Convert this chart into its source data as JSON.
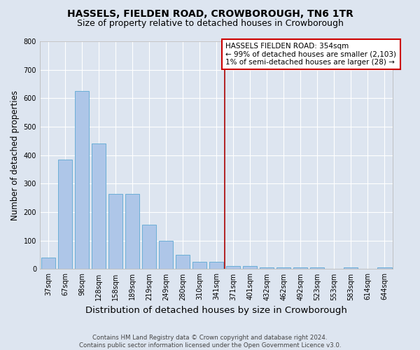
{
  "title": "HASSELS, FIELDEN ROAD, CROWBOROUGH, TN6 1TR",
  "subtitle": "Size of property relative to detached houses in Crowborough",
  "xlabel": "Distribution of detached houses by size in Crowborough",
  "ylabel": "Number of detached properties",
  "footer": "Contains HM Land Registry data © Crown copyright and database right 2024.\nContains public sector information licensed under the Open Government Licence v3.0.",
  "bin_labels": [
    "37sqm",
    "67sqm",
    "98sqm",
    "128sqm",
    "158sqm",
    "189sqm",
    "219sqm",
    "249sqm",
    "280sqm",
    "310sqm",
    "341sqm",
    "371sqm",
    "401sqm",
    "432sqm",
    "462sqm",
    "492sqm",
    "523sqm",
    "553sqm",
    "583sqm",
    "614sqm",
    "644sqm"
  ],
  "bar_heights": [
    40,
    385,
    625,
    440,
    265,
    265,
    155,
    100,
    50,
    25,
    25,
    12,
    12,
    5,
    5,
    5,
    5,
    0,
    5,
    0,
    5
  ],
  "bar_color": "#aec6e8",
  "bar_edge_color": "#6baed6",
  "property_line_bin": 10,
  "property_line_color": "#aa0000",
  "annotation_text": "HASSELS FIELDEN ROAD: 354sqm\n← 99% of detached houses are smaller (2,103)\n1% of semi-detached houses are larger (28) →",
  "annotation_box_color": "#cc0000",
  "annotation_text_color": "#000000",
  "ylim": [
    0,
    800
  ],
  "yticks": [
    0,
    100,
    200,
    300,
    400,
    500,
    600,
    700,
    800
  ],
  "background_color": "#dde5f0",
  "plot_background_color": "#dde5f0",
  "grid_color": "#ffffff",
  "title_fontsize": 10,
  "subtitle_fontsize": 9,
  "tick_fontsize": 7,
  "ylabel_fontsize": 8.5,
  "xlabel_fontsize": 9.5
}
